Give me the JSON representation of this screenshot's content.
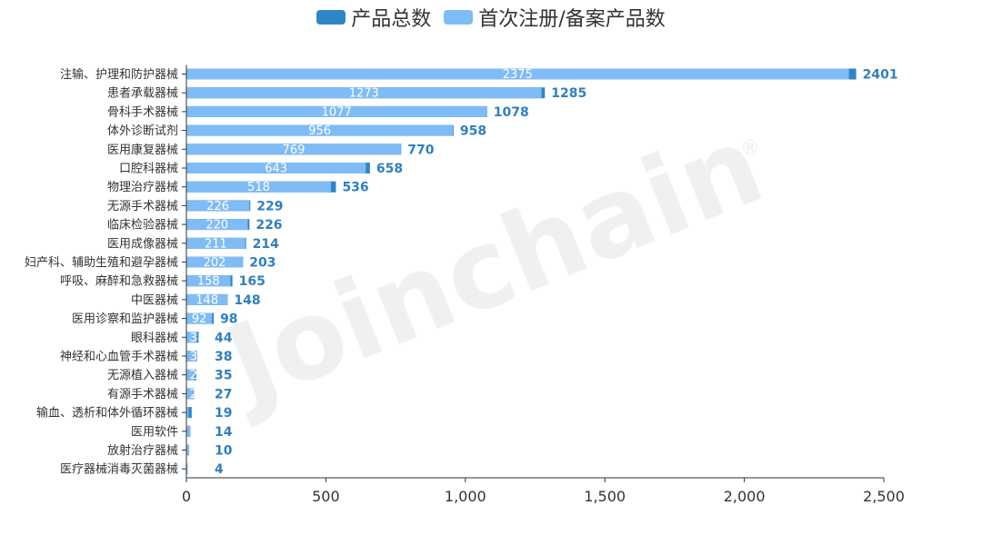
{
  "legend": {
    "total_label": "产品总数",
    "first_label": "首次注册/备案产品数"
  },
  "watermark": {
    "text": "Joinchain",
    "mark": "®"
  },
  "colors": {
    "total": "#2f86c6",
    "first": "#7fbbf5"
  },
  "chart_data": {
    "type": "bar",
    "orientation": "horizontal",
    "categories": [
      "注输、护理和防护器械",
      "患者承载器械",
      "骨科手术器械",
      "体外诊断试剂",
      "医用康复器械",
      "口腔科器械",
      "物理治疗器械",
      "无源手术器械",
      "临床检验器械",
      "医用成像器械",
      "妇产科、辅助生殖和避孕器械",
      "呼吸、麻醉和急救器械",
      "中医器械",
      "医用诊察和监护器械",
      "眼科器械",
      "神经和心血管手术器械",
      "无源植入器械",
      "有源手术器械",
      "输血、透析和体外循环器械",
      "医用软件",
      "放射治疗器械",
      "医疗器械消毒灭菌器械"
    ],
    "series": [
      {
        "name": "产品总数",
        "values": [
          2401,
          1285,
          1078,
          958,
          770,
          658,
          536,
          229,
          226,
          214,
          203,
          165,
          148,
          98,
          44,
          38,
          35,
          27,
          19,
          14,
          10,
          4
        ]
      },
      {
        "name": "首次注册/备案产品数",
        "values": [
          2375,
          1273,
          1077,
          956,
          769,
          643,
          518,
          226,
          220,
          211,
          202,
          158,
          148,
          92,
          38,
          38,
          29,
          25,
          8,
          14,
          10,
          4
        ]
      }
    ],
    "xlim": [
      0,
      2500
    ],
    "xticks": [
      0,
      500,
      1000,
      1500,
      2000,
      2500
    ],
    "xtick_labels": [
      "0",
      "500",
      "1,000",
      "1,500",
      "2,000",
      "2,500"
    ],
    "grid": false,
    "legend_position": "top-center"
  }
}
